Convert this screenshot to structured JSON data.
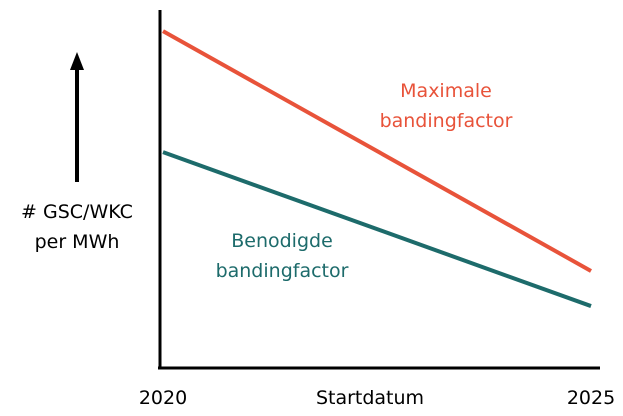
{
  "chart_data": {
    "type": "line",
    "x": [
      2020,
      2025
    ],
    "xlim": [
      2020,
      2025
    ],
    "xticks": [
      2020,
      2025
    ],
    "x_label": "Startdatum",
    "y_label": "# GSC/WKC per MWh",
    "ylim": [
      0,
      100
    ],
    "series": [
      {
        "name": "Maximale bandingfactor",
        "color": "#e8533a",
        "values": [
          94.1,
          27.1
        ]
      },
      {
        "name": "Benodigde bandingfactor",
        "color": "#1d6b6b",
        "values": [
          60.3,
          17.3
        ]
      }
    ]
  }
}
